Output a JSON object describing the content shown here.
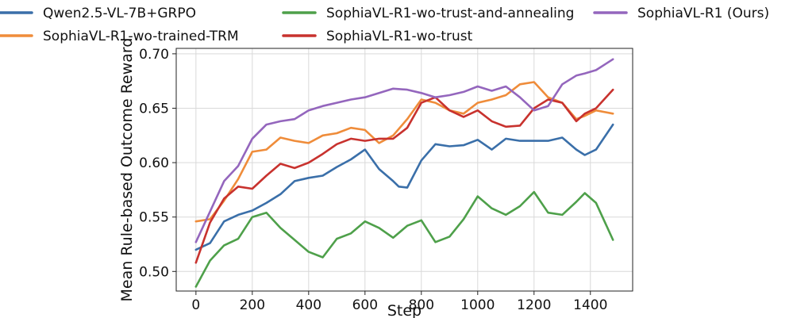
{
  "chart_data": {
    "type": "line",
    "title": "",
    "xlabel": "Step",
    "ylabel": "Mean Rule-based Outcome Reward",
    "xlim": [
      -70,
      1550
    ],
    "ylim": [
      0.482,
      0.705
    ],
    "xticks": [
      0,
      200,
      400,
      600,
      800,
      1000,
      1200,
      1400
    ],
    "yticks": [
      0.5,
      0.55,
      0.6,
      0.65,
      0.7
    ],
    "ytick_labels": [
      "0.50",
      "0.55",
      "0.60",
      "0.65",
      "0.70"
    ],
    "grid": true,
    "legend_position": "top, outside plot",
    "series": [
      {
        "name": "Qwen2.5-VL-7B+GRPO",
        "color": "#3a6fa9",
        "x": [
          0,
          50,
          100,
          150,
          200,
          250,
          300,
          350,
          400,
          450,
          500,
          550,
          600,
          650,
          700,
          720,
          750,
          800,
          850,
          900,
          950,
          1000,
          1050,
          1100,
          1150,
          1200,
          1250,
          1300,
          1350,
          1380,
          1420,
          1480
        ],
        "y": [
          0.52,
          0.526,
          0.546,
          0.552,
          0.556,
          0.563,
          0.571,
          0.583,
          0.586,
          0.588,
          0.596,
          0.603,
          0.612,
          0.594,
          0.583,
          0.578,
          0.577,
          0.602,
          0.617,
          0.615,
          0.616,
          0.621,
          0.612,
          0.622,
          0.62,
          0.62,
          0.62,
          0.623,
          0.612,
          0.607,
          0.612,
          0.635
        ]
      },
      {
        "name": "SophiaVL-R1-wo-trained-TRM",
        "color": "#ef8c3a",
        "x": [
          0,
          50,
          100,
          150,
          200,
          250,
          300,
          350,
          400,
          450,
          500,
          550,
          600,
          650,
          700,
          750,
          800,
          850,
          900,
          950,
          1000,
          1050,
          1100,
          1150,
          1200,
          1250,
          1300,
          1350,
          1380,
          1420,
          1480
        ],
        "y": [
          0.546,
          0.548,
          0.565,
          0.585,
          0.61,
          0.612,
          0.623,
          0.62,
          0.618,
          0.625,
          0.627,
          0.632,
          0.63,
          0.618,
          0.625,
          0.64,
          0.658,
          0.655,
          0.648,
          0.645,
          0.655,
          0.658,
          0.662,
          0.672,
          0.674,
          0.66,
          0.655,
          0.64,
          0.643,
          0.648,
          0.645
        ]
      },
      {
        "name": "SophiaVL-R1-wo-trust-and-annealing",
        "color": "#4ea04a",
        "x": [
          0,
          50,
          100,
          150,
          200,
          250,
          300,
          350,
          400,
          450,
          500,
          550,
          600,
          650,
          700,
          750,
          800,
          850,
          900,
          950,
          1000,
          1050,
          1100,
          1150,
          1200,
          1250,
          1300,
          1350,
          1380,
          1420,
          1480
        ],
        "y": [
          0.486,
          0.51,
          0.524,
          0.53,
          0.55,
          0.554,
          0.54,
          0.529,
          0.518,
          0.513,
          0.53,
          0.535,
          0.546,
          0.54,
          0.531,
          0.542,
          0.547,
          0.527,
          0.532,
          0.548,
          0.569,
          0.558,
          0.552,
          0.56,
          0.573,
          0.554,
          0.552,
          0.564,
          0.572,
          0.563,
          0.529
        ]
      },
      {
        "name": "SophiaVL-R1-wo-trust",
        "color": "#c8322e",
        "x": [
          0,
          50,
          100,
          150,
          200,
          250,
          300,
          350,
          400,
          450,
          500,
          550,
          600,
          650,
          700,
          750,
          800,
          850,
          900,
          950,
          1000,
          1050,
          1100,
          1150,
          1200,
          1250,
          1300,
          1350,
          1380,
          1420,
          1480
        ],
        "y": [
          0.508,
          0.545,
          0.567,
          0.578,
          0.576,
          0.588,
          0.599,
          0.595,
          0.6,
          0.608,
          0.617,
          0.622,
          0.62,
          0.622,
          0.622,
          0.632,
          0.655,
          0.66,
          0.648,
          0.642,
          0.648,
          0.638,
          0.633,
          0.634,
          0.65,
          0.658,
          0.655,
          0.638,
          0.645,
          0.65,
          0.667
        ]
      },
      {
        "name": "SophiaVL-R1 (Ours)",
        "color": "#9466bd",
        "x": [
          0,
          50,
          100,
          150,
          200,
          250,
          300,
          350,
          400,
          450,
          500,
          550,
          600,
          650,
          700,
          750,
          800,
          850,
          900,
          950,
          1000,
          1050,
          1100,
          1150,
          1200,
          1250,
          1300,
          1350,
          1380,
          1420,
          1480
        ],
        "y": [
          0.527,
          0.555,
          0.583,
          0.597,
          0.622,
          0.635,
          0.638,
          0.64,
          0.648,
          0.652,
          0.655,
          0.658,
          0.66,
          0.664,
          0.668,
          0.667,
          0.664,
          0.66,
          0.662,
          0.665,
          0.67,
          0.666,
          0.67,
          0.66,
          0.648,
          0.652,
          0.672,
          0.68,
          0.682,
          0.685,
          0.695
        ]
      }
    ]
  }
}
